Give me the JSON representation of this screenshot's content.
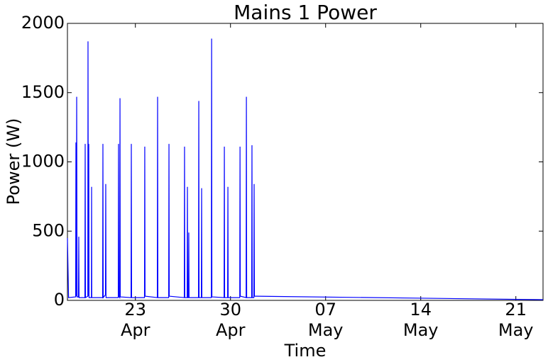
{
  "chart_data": {
    "type": "line",
    "title": "Mains 1 Power",
    "x_label": "Time",
    "y_label": "Power (W)",
    "x": [
      "04-18 00:00",
      "04-18 02:00",
      "04-18 14:30",
      "04-18 15:00",
      "04-18 15:40",
      "04-18 16:20",
      "04-18 17:00",
      "04-18 19:30",
      "04-18 20:00",
      "04-18 20:30",
      "04-19 06:50",
      "04-19 07:20",
      "04-19 07:50",
      "04-19 12:00",
      "04-19 12:20",
      "04-19 13:00",
      "04-19 13:40",
      "04-19 14:10",
      "04-19 18:20",
      "04-19 18:40",
      "04-19 19:00",
      "04-20 14:10",
      "04-20 14:40",
      "04-20 15:10",
      "04-20 19:10",
      "04-20 19:40",
      "04-20 20:10",
      "04-21 17:45",
      "04-21 18:15",
      "04-21 18:45",
      "04-21 20:20",
      "04-21 20:50",
      "04-21 21:20",
      "04-22 16:20",
      "04-22 16:50",
      "04-22 17:20",
      "04-23 16:05",
      "04-23 16:35",
      "04-23 17:05",
      "04-24 14:45",
      "04-24 15:15",
      "04-24 15:45",
      "04-25 10:50",
      "04-25 11:20",
      "04-25 11:50",
      "04-26 14:20",
      "04-26 14:50",
      "04-26 15:20",
      "04-26 19:25",
      "04-26 19:55",
      "04-26 20:25",
      "04-26 21:50",
      "04-26 22:20",
      "04-26 22:50",
      "04-27 15:30",
      "04-27 16:00",
      "04-27 16:30",
      "04-27 20:30",
      "04-27 21:00",
      "04-27 21:30",
      "04-28 14:10",
      "04-28 14:40",
      "04-28 15:10",
      "04-29 12:40",
      "04-29 13:10",
      "04-29 13:40",
      "04-29 18:55",
      "04-29 19:25",
      "04-29 19:55",
      "04-30 16:20",
      "04-30 16:50",
      "04-30 17:20",
      "05-01 03:35",
      "05-01 04:05",
      "05-01 04:35",
      "05-01 13:25",
      "05-01 13:55",
      "05-01 14:25",
      "05-01 17:15",
      "05-01 17:45",
      "05-01 18:15",
      "05-01 22:50",
      "05-23 00:00"
    ],
    "series": [
      {
        "name": "Mains 1",
        "color": "#0000ff",
        "values": [
          450,
          20,
          25,
          1140,
          30,
          1470,
          25,
          25,
          460,
          20,
          20,
          1130,
          20,
          30,
          1870,
          30,
          1130,
          20,
          20,
          820,
          20,
          20,
          1130,
          20,
          40,
          840,
          20,
          20,
          1130,
          30,
          20,
          1460,
          25,
          20,
          1130,
          20,
          20,
          1110,
          30,
          20,
          1470,
          20,
          20,
          1130,
          30,
          20,
          1110,
          20,
          20,
          820,
          20,
          20,
          490,
          20,
          20,
          1440,
          20,
          20,
          810,
          20,
          20,
          1890,
          25,
          20,
          1110,
          20,
          20,
          820,
          20,
          20,
          1110,
          30,
          20,
          1470,
          20,
          20,
          1120,
          20,
          20,
          840,
          30,
          30,
          5
        ]
      }
    ],
    "xlim": [
      "04-18 00:00",
      "05-23 00:00"
    ],
    "xticks": [
      {
        "value": "04-23 00:00",
        "label": "23\nApr"
      },
      {
        "value": "04-30 00:00",
        "label": "30\nApr"
      },
      {
        "value": "05-07 00:00",
        "label": "07\nMay"
      },
      {
        "value": "05-14 00:00",
        "label": "14\nMay"
      },
      {
        "value": "05-21 00:00",
        "label": "21\nMay"
      }
    ],
    "ylim": [
      0,
      2000
    ],
    "yticks": [
      0,
      500,
      1000,
      1500,
      2000
    ],
    "grid": false
  }
}
